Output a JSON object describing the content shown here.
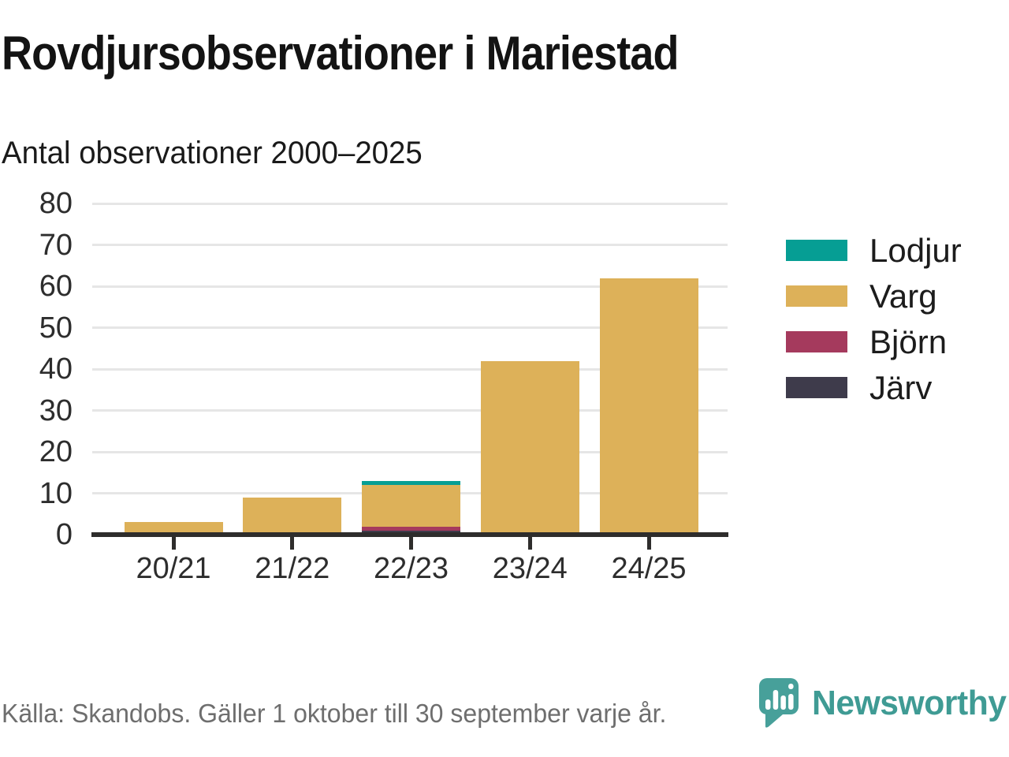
{
  "header": {
    "title": "Rovdjursobservationer i Mariestad",
    "subtitle": "Antal observationer 2000–2025"
  },
  "chart_data": {
    "type": "bar",
    "stacked": true,
    "title": "Rovdjursobservationer i Mariestad",
    "subtitle": "Antal observationer 2000–2025",
    "categories": [
      "20/21",
      "21/22",
      "22/23",
      "23/24",
      "24/25"
    ],
    "series": [
      {
        "name": "Lodjur",
        "color": "#069e94",
        "values": [
          0,
          0,
          1,
          0,
          0
        ]
      },
      {
        "name": "Varg",
        "color": "#ddb159",
        "values": [
          3,
          9,
          10,
          42,
          62
        ]
      },
      {
        "name": "Björn",
        "color": "#a53a5d",
        "values": [
          0,
          0,
          1,
          0,
          0
        ]
      },
      {
        "name": "Järv",
        "color": "#3e3b4b",
        "values": [
          0,
          0,
          1,
          0,
          0
        ]
      }
    ],
    "stack_bottom_to_top": [
      "Järv",
      "Björn",
      "Varg",
      "Lodjur"
    ],
    "totals": [
      3,
      9,
      13,
      42,
      62
    ],
    "xlabel": "",
    "ylabel": "",
    "ylim": [
      0,
      80
    ],
    "yticks": [
      0,
      10,
      20,
      30,
      40,
      50,
      60,
      70,
      80
    ],
    "grid": true,
    "legend_position": "right"
  },
  "footer": {
    "source": "Källa: Skandobs. Gäller 1 oktober till 30 september varje år.",
    "brand": "Newsworthy"
  },
  "colors": {
    "background": "#ffffff",
    "gridline": "#e6e6e6",
    "axis": "#2e2d2c",
    "text_primary": "#131313",
    "text_axis": "#2d2d2d",
    "text_source": "#6e6e6e",
    "brand_teal": "#3f9b94",
    "logo_bubble_teal": "#47a09a"
  },
  "icons": {
    "brand_logo": "speech-bubble-bar-chart-icon"
  }
}
